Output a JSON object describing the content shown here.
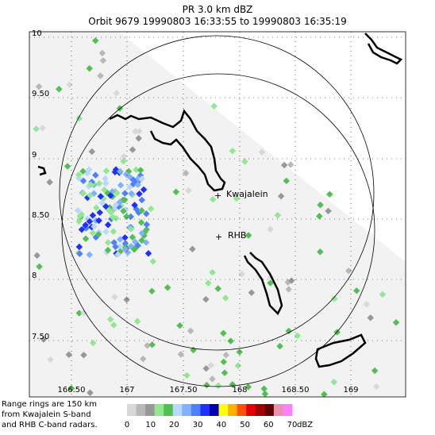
{
  "header": {
    "title": "PR  3.0 km dBZ",
    "subtitle": "Orbit 9679 19990803 16:33:55 to 19990803 16:35:19"
  },
  "map": {
    "x_labels": [
      "166.50",
      "167",
      "167.50",
      "168",
      "168.50",
      "169"
    ],
    "y_labels": [
      "10",
      "9.50",
      "9",
      "8.50",
      "8",
      "7.50"
    ],
    "stations": [
      "Kwajalein",
      "RHB"
    ]
  },
  "footnote": [
    "Range rings are 150 km",
    "from Kwajalein S-band",
    "and RHB C-band radars."
  ],
  "colorbar": {
    "ticks": [
      0,
      10,
      20,
      30,
      40,
      50,
      60,
      70
    ],
    "unit": "dBZ",
    "colors": [
      "#d8d8d8",
      "#b8b8b8",
      "#989898",
      "#90e890",
      "#50c050",
      "#b8d8ff",
      "#80b0ff",
      "#4c80ff",
      "#1c30ff",
      "#0000b0",
      "#ffff00",
      "#ffb000",
      "#ff5000",
      "#e00000",
      "#a00000",
      "#600000",
      "#e890b0",
      "#ff80ff"
    ]
  }
}
